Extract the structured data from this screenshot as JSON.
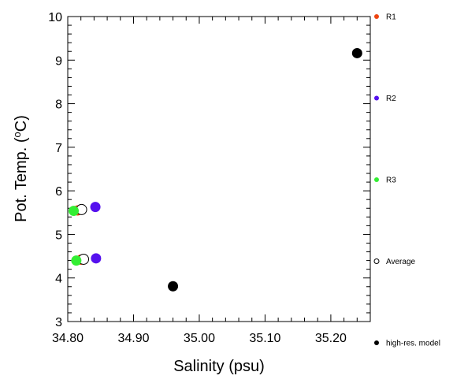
{
  "chart_data": {
    "type": "scatter",
    "title": "",
    "xlabel": "Salinity (psu)",
    "ylabel_prefix": "Pot. Temp. (",
    "ylabel_super": "o",
    "ylabel_suffix": "C)",
    "xlim": [
      34.8,
      35.26
    ],
    "ylim": [
      3,
      10
    ],
    "xticks": [
      34.8,
      34.9,
      35.0,
      35.1,
      35.2
    ],
    "xtick_labels": [
      "34.80",
      "34.90",
      "35.00",
      "35.10",
      "35.20"
    ],
    "yticks": [
      3,
      4,
      5,
      6,
      7,
      8,
      9,
      10
    ],
    "ytick_labels": [
      "3",
      "4",
      "5",
      "6",
      "7",
      "8",
      "9",
      "10"
    ],
    "grid": false,
    "legend_position": "right",
    "series": [
      {
        "name": "R1",
        "color": "#ee4411",
        "marker": "filled",
        "points": [
          {
            "x": 34.815,
            "y": 5.55
          },
          {
            "x": 34.82,
            "y": 4.42
          }
        ]
      },
      {
        "name": "Average",
        "color": "#000000",
        "marker": "open",
        "points": [
          {
            "x": 34.821,
            "y": 5.57
          },
          {
            "x": 34.824,
            "y": 4.43
          }
        ]
      },
      {
        "name": "R3",
        "color": "#33ee33",
        "marker": "filled",
        "points": [
          {
            "x": 34.809,
            "y": 5.54
          },
          {
            "x": 34.813,
            "y": 4.4
          }
        ]
      },
      {
        "name": "R2",
        "color": "#5511ee",
        "marker": "filled",
        "points": [
          {
            "x": 34.842,
            "y": 5.63
          },
          {
            "x": 34.843,
            "y": 4.45
          }
        ]
      },
      {
        "name": "high-res. model",
        "color": "#000000",
        "marker": "filled",
        "points": [
          {
            "x": 34.96,
            "y": 3.81
          },
          {
            "x": 35.24,
            "y": 9.16
          }
        ]
      }
    ],
    "legend": [
      {
        "name": "R1",
        "color": "#ee4411",
        "marker": "filled"
      },
      {
        "name": "R2",
        "color": "#5511ee",
        "marker": "filled"
      },
      {
        "name": "R3",
        "color": "#33ee33",
        "marker": "filled"
      },
      {
        "name": "Average",
        "color": "#000000",
        "marker": "open"
      },
      {
        "name": "high-res. model",
        "color": "#000000",
        "marker": "filled"
      }
    ]
  }
}
